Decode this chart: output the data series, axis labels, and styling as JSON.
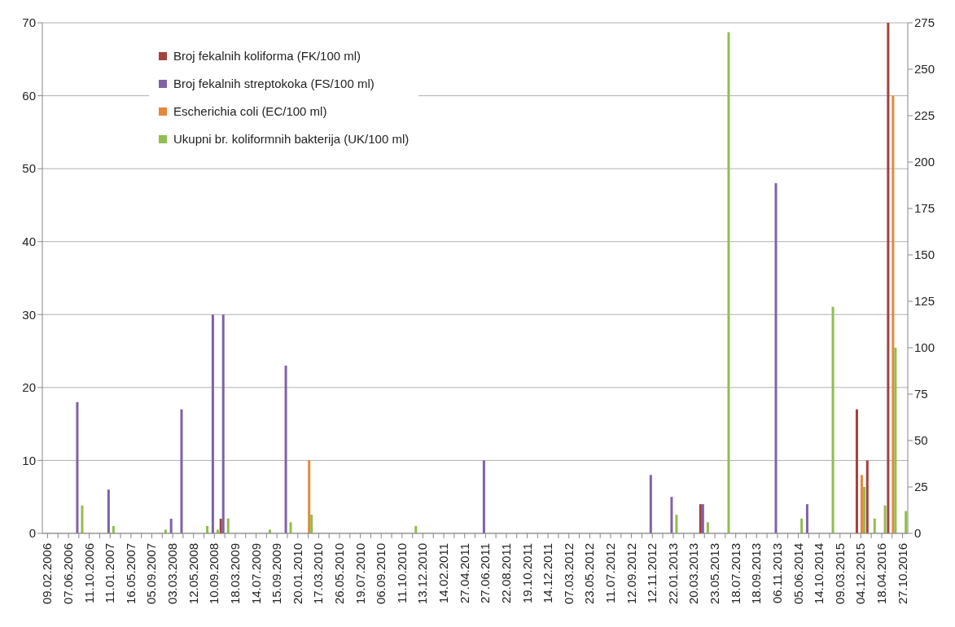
{
  "chart_data": {
    "type": "bar",
    "categories": [
      "09.02.2006",
      null,
      "07.06.2006",
      null,
      "11.10.2006",
      null,
      "11.01.2007",
      null,
      "16.05.2007",
      null,
      "05.09.2007",
      null,
      "03.03.2008",
      null,
      "12.05.2008",
      null,
      "10.09.2008",
      null,
      "18.03.2009",
      null,
      "14.07.2009",
      null,
      "15.09.2009",
      null,
      "20.01.2010",
      null,
      "17.03.2010",
      null,
      "26.05.2010",
      null,
      "19.07.2010",
      null,
      "06.09.2010",
      null,
      "11.10.2010",
      null,
      "13.12.2010",
      null,
      "14.02.2011",
      null,
      "27.04.2011",
      null,
      "27.06.2011",
      null,
      "22.08.2011",
      null,
      "19.10.2011",
      null,
      "14.12.2011",
      null,
      "07.03.2012",
      null,
      "23.05.2012",
      null,
      "11.07.2012",
      null,
      "12.09.2012",
      null,
      "12.11.2012",
      null,
      "22.01.2013",
      null,
      "20.03.2013",
      null,
      "23.05.2013",
      null,
      "18.07.2013",
      null,
      "18.09.2013",
      null,
      "06.11.2013",
      null,
      "05.06.2014",
      null,
      "14.10.2014",
      null,
      "09.03.2015",
      null,
      "04.12.2015",
      null,
      "18.04.2016",
      null,
      "27.10.2016"
    ],
    "series": [
      {
        "name": "Broj fekalnih koliforma (FK/100 ml)",
        "color": "#a5403e",
        "axis": "y",
        "values": [
          null,
          null,
          null,
          null,
          null,
          null,
          null,
          null,
          null,
          null,
          null,
          null,
          null,
          null,
          null,
          null,
          null,
          2,
          null,
          null,
          null,
          null,
          null,
          null,
          null,
          null,
          null,
          null,
          null,
          null,
          null,
          null,
          null,
          null,
          null,
          null,
          null,
          null,
          null,
          null,
          null,
          null,
          null,
          null,
          null,
          null,
          null,
          null,
          null,
          null,
          null,
          null,
          null,
          null,
          null,
          null,
          null,
          null,
          null,
          null,
          null,
          null,
          null,
          4,
          null,
          null,
          null,
          null,
          null,
          null,
          null,
          null,
          null,
          null,
          null,
          null,
          null,
          null,
          17,
          10,
          null,
          70,
          null
        ]
      },
      {
        "name": "Broj fekalnih streptokoka (FS/100 ml)",
        "color": "#7f62a8",
        "axis": "y",
        "values": [
          null,
          null,
          null,
          18,
          null,
          null,
          6,
          null,
          null,
          null,
          null,
          null,
          2,
          17,
          null,
          null,
          30,
          30,
          null,
          null,
          null,
          null,
          null,
          23,
          null,
          null,
          null,
          null,
          null,
          null,
          null,
          null,
          null,
          null,
          null,
          null,
          null,
          null,
          null,
          null,
          null,
          null,
          10,
          null,
          null,
          null,
          null,
          null,
          null,
          null,
          null,
          null,
          null,
          null,
          null,
          null,
          null,
          null,
          8,
          null,
          5,
          null,
          null,
          4,
          null,
          null,
          null,
          null,
          null,
          null,
          48,
          null,
          null,
          4,
          null,
          null,
          null,
          null,
          null,
          null,
          null,
          null,
          null
        ]
      },
      {
        "name": "Escherichia coli (EC/100 ml)",
        "color": "#e5883a",
        "axis": "y",
        "values": [
          null,
          null,
          null,
          null,
          null,
          null,
          null,
          null,
          null,
          null,
          null,
          null,
          null,
          null,
          null,
          null,
          null,
          null,
          null,
          null,
          null,
          null,
          null,
          null,
          null,
          10,
          null,
          null,
          null,
          null,
          null,
          null,
          null,
          null,
          null,
          null,
          null,
          null,
          null,
          null,
          null,
          null,
          null,
          null,
          null,
          null,
          null,
          null,
          null,
          null,
          null,
          null,
          null,
          null,
          null,
          null,
          null,
          null,
          null,
          null,
          null,
          null,
          null,
          null,
          null,
          null,
          null,
          null,
          null,
          null,
          null,
          null,
          null,
          null,
          null,
          null,
          null,
          null,
          8,
          null,
          null,
          60,
          null
        ]
      },
      {
        "name": "Ukupni br. koliformnih bakterija (UK/100 ml)",
        "color": "#92bd4f",
        "axis": "y2",
        "values": [
          null,
          null,
          null,
          15,
          null,
          null,
          4,
          null,
          null,
          null,
          null,
          2,
          null,
          null,
          null,
          4,
          2,
          8,
          null,
          null,
          null,
          2,
          null,
          6,
          null,
          10,
          null,
          null,
          null,
          null,
          null,
          null,
          null,
          null,
          null,
          4,
          null,
          null,
          null,
          null,
          null,
          null,
          null,
          null,
          null,
          null,
          null,
          null,
          null,
          null,
          null,
          null,
          null,
          null,
          null,
          null,
          null,
          null,
          null,
          null,
          10,
          null,
          null,
          6,
          null,
          270,
          null,
          null,
          null,
          null,
          null,
          null,
          8,
          null,
          null,
          122,
          null,
          null,
          25,
          8,
          15,
          100,
          12
        ]
      }
    ],
    "ylim": [
      0,
      70
    ],
    "yticks": [
      0,
      10,
      20,
      30,
      40,
      50,
      60,
      70
    ],
    "y2lim": [
      0,
      275
    ],
    "y2ticks": [
      0,
      25,
      50,
      75,
      100,
      125,
      150,
      175,
      200,
      225,
      250,
      275
    ],
    "grid": "y",
    "legend": "top left"
  }
}
